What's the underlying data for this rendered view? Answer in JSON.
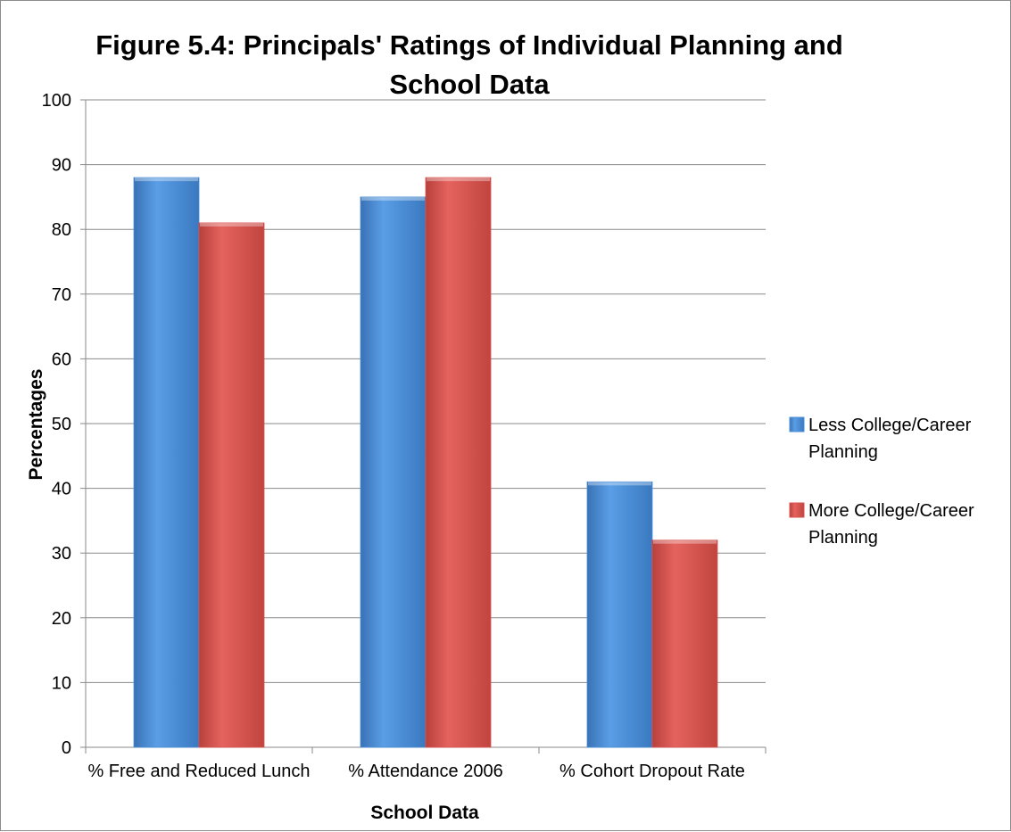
{
  "chart_data": {
    "type": "bar",
    "title_lines": [
      "Figure 5.4: Principals' Ratings of Individual Planning and",
      "School Data"
    ],
    "xlabel": "School Data",
    "ylabel": "Percentages",
    "ylim": [
      0,
      100
    ],
    "yticks": [
      0,
      10,
      20,
      30,
      40,
      50,
      60,
      70,
      80,
      90,
      100
    ],
    "categories": [
      "% Free and Reduced Lunch",
      "% Attendance 2006",
      "% Cohort Dropout Rate"
    ],
    "series": [
      {
        "name": "Less College/Career Planning",
        "legend_lines": [
          "Less College/Career",
          "Planning"
        ],
        "color": "#4a8fd6",
        "values": [
          88,
          85,
          41
        ]
      },
      {
        "name": "More College/Career Planning",
        "legend_lines": [
          "More College/Career",
          "Planning"
        ],
        "color": "#d9534f",
        "values": [
          81,
          88,
          32
        ]
      }
    ],
    "grid": true,
    "legend_position": "right"
  }
}
